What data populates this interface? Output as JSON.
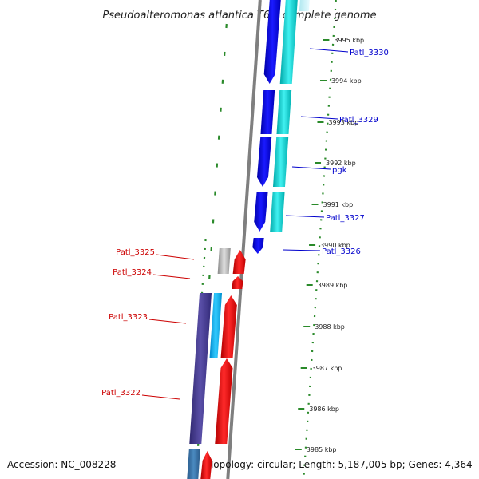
{
  "title": "Pseudoalteromonas atlantica T6c, complete genome",
  "footer": {
    "accession": "Accession: NC_008228",
    "summary": "Topology: circular; Length: 5,187,005 bp; Genes: 4,364"
  },
  "colors": {
    "backbone": "#7f7f7f",
    "guide_dots": "#2a8a2a",
    "forward_label": "#0000cc",
    "reverse_label": "#cc0000",
    "cds_forward": "#0000ee",
    "cds_forward_paired": "#00c8c8",
    "cds_reverse": "#ee0000",
    "cds_reverse_paired": "#4a3f8a",
    "other_feature": "#aaaaaa"
  },
  "scale_ticks": [
    {
      "label": "3995 kbp"
    },
    {
      "label": "3994 kbp"
    },
    {
      "label": "3993 kbp"
    },
    {
      "label": "3992 kbp"
    },
    {
      "label": "3991 kbp"
    },
    {
      "label": "3990 kbp"
    },
    {
      "label": "3989 kbp"
    },
    {
      "label": "3988 kbp"
    },
    {
      "label": "3987 kbp"
    },
    {
      "label": "3986 kbp"
    },
    {
      "label": "3985 kbp"
    }
  ],
  "gene_labels": {
    "forward": [
      {
        "name": "Patl_3330"
      },
      {
        "name": "Patl_3329"
      },
      {
        "name": "pgk"
      },
      {
        "name": "Patl_3327"
      },
      {
        "name": "Patl_3326"
      }
    ],
    "reverse": [
      {
        "name": "Patl_3325"
      },
      {
        "name": "Patl_3324"
      },
      {
        "name": "Patl_3323"
      },
      {
        "name": "Patl_3322"
      }
    ]
  }
}
